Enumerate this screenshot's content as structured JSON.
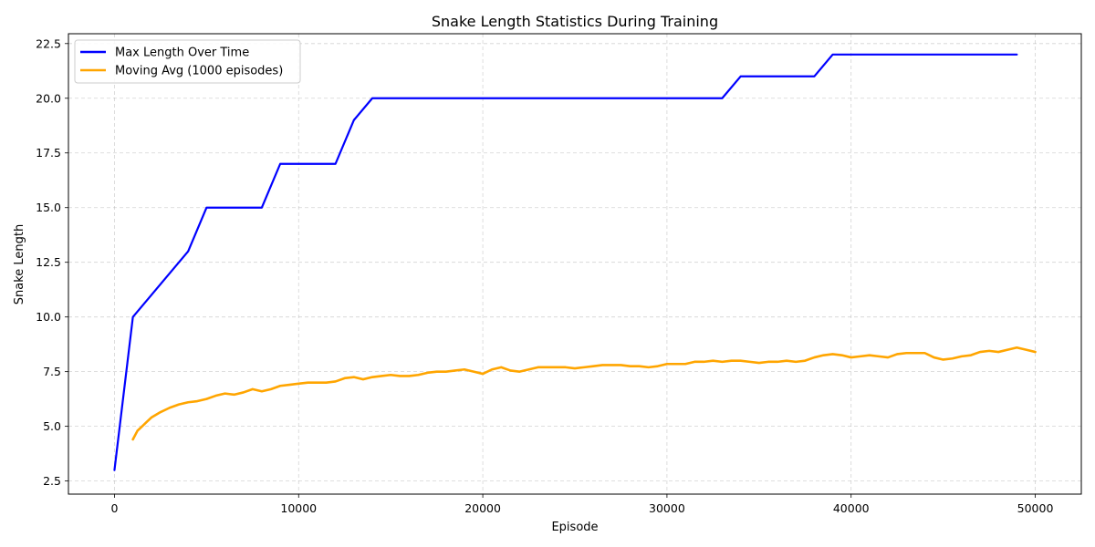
{
  "chart_data": {
    "type": "line",
    "title": "Snake Length Statistics During Training",
    "xlabel": "Episode",
    "ylabel": "Snake Length",
    "xlim": [
      -2500,
      52500
    ],
    "ylim": [
      1.9,
      22.95
    ],
    "xticks": [
      0,
      10000,
      20000,
      30000,
      40000,
      50000
    ],
    "xtick_labels": [
      "0",
      "10000",
      "20000",
      "30000",
      "40000",
      "50000"
    ],
    "yticks": [
      2.5,
      5.0,
      7.5,
      10.0,
      12.5,
      15.0,
      17.5,
      20.0,
      22.5
    ],
    "ytick_labels": [
      "2.5",
      "5.0",
      "7.5",
      "10.0",
      "12.5",
      "15.0",
      "17.5",
      "20.0",
      "22.5"
    ],
    "grid": true,
    "legend_position": "top-left",
    "series": [
      {
        "name": "Max Length Over Time",
        "color": "#0000ff",
        "x": [
          0,
          1000,
          4000,
          5000,
          8000,
          9000,
          12000,
          13000,
          14000,
          33000,
          34000,
          38000,
          39000,
          49000
        ],
        "y": [
          3,
          10,
          13,
          15,
          15,
          17,
          17,
          19,
          20,
          20,
          21,
          21,
          22,
          22
        ]
      },
      {
        "name": "Moving Avg (1000 episodes)",
        "color": "#ffa500",
        "x": [
          1000,
          1250,
          1500,
          1750,
          2000,
          2500,
          3000,
          3500,
          4000,
          4500,
          5000,
          5500,
          6000,
          6500,
          7000,
          7500,
          8000,
          8500,
          9000,
          9500,
          10000,
          10500,
          11000,
          11500,
          12000,
          12500,
          13000,
          13500,
          14000,
          14500,
          15000,
          15500,
          16000,
          16500,
          17000,
          17500,
          18000,
          18500,
          19000,
          19500,
          20000,
          20500,
          21000,
          21500,
          22000,
          22500,
          23000,
          23500,
          24000,
          24500,
          25000,
          25500,
          26000,
          26500,
          27000,
          27500,
          28000,
          28500,
          29000,
          29500,
          30000,
          30500,
          31000,
          31500,
          32000,
          32500,
          33000,
          33500,
          34000,
          34500,
          35000,
          35500,
          36000,
          36500,
          37000,
          37500,
          38000,
          38500,
          39000,
          39500,
          40000,
          40500,
          41000,
          41500,
          42000,
          42500,
          43000,
          43500,
          44000,
          44500,
          45000,
          45500,
          46000,
          46500,
          47000,
          47500,
          48000,
          48500,
          49000,
          49500,
          50000
        ],
        "y": [
          4.4,
          4.8,
          5.0,
          5.2,
          5.4,
          5.65,
          5.85,
          6.0,
          6.1,
          6.15,
          6.25,
          6.4,
          6.5,
          6.45,
          6.55,
          6.7,
          6.6,
          6.7,
          6.85,
          6.9,
          6.95,
          7.0,
          7.0,
          7.0,
          7.05,
          7.2,
          7.25,
          7.15,
          7.25,
          7.3,
          7.35,
          7.3,
          7.3,
          7.35,
          7.45,
          7.5,
          7.5,
          7.55,
          7.6,
          7.5,
          7.4,
          7.6,
          7.7,
          7.55,
          7.5,
          7.6,
          7.7,
          7.7,
          7.7,
          7.7,
          7.65,
          7.7,
          7.75,
          7.8,
          7.8,
          7.8,
          7.75,
          7.75,
          7.7,
          7.75,
          7.85,
          7.85,
          7.85,
          7.95,
          7.95,
          8.0,
          7.95,
          8.0,
          8.0,
          7.95,
          7.9,
          7.95,
          7.95,
          8.0,
          7.95,
          8.0,
          8.15,
          8.25,
          8.3,
          8.25,
          8.15,
          8.2,
          8.25,
          8.2,
          8.15,
          8.3,
          8.35,
          8.35,
          8.35,
          8.15,
          8.05,
          8.1,
          8.2,
          8.25,
          8.4,
          8.45,
          8.4,
          8.5,
          8.6,
          8.5,
          8.4
        ]
      }
    ]
  }
}
